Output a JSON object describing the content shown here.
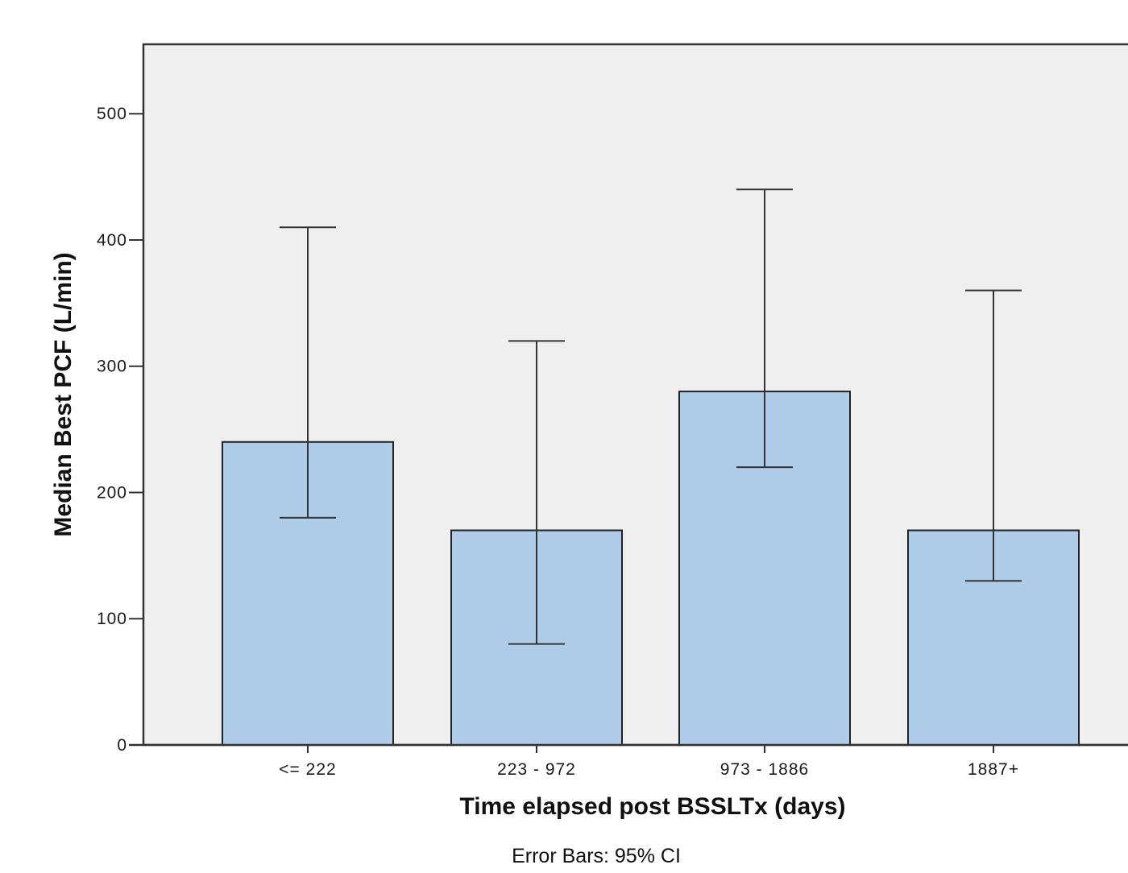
{
  "chart_data": {
    "type": "bar",
    "categories": [
      "<= 222",
      "223 - 972",
      "973 - 1886",
      "1887+"
    ],
    "values": [
      240,
      170,
      280,
      170
    ],
    "error_bars": {
      "label": "Error Bars: 95% CI",
      "lower": [
        180,
        80,
        220,
        130
      ],
      "upper": [
        410,
        320,
        440,
        360
      ]
    },
    "xlabel": "Time elapsed post BSSLTx (days)",
    "ylabel": "Median Best PCF (L/min)",
    "ylim": [
      0,
      555
    ],
    "yticks": [
      0,
      100,
      200,
      300,
      400,
      500
    ],
    "grid": false,
    "legend": "none",
    "colors": {
      "bar_fill": "#aecbe8",
      "bar_stroke": "#222222",
      "plot_background": "#efefef",
      "axis": "#333333",
      "error_bar": "#333333"
    }
  }
}
